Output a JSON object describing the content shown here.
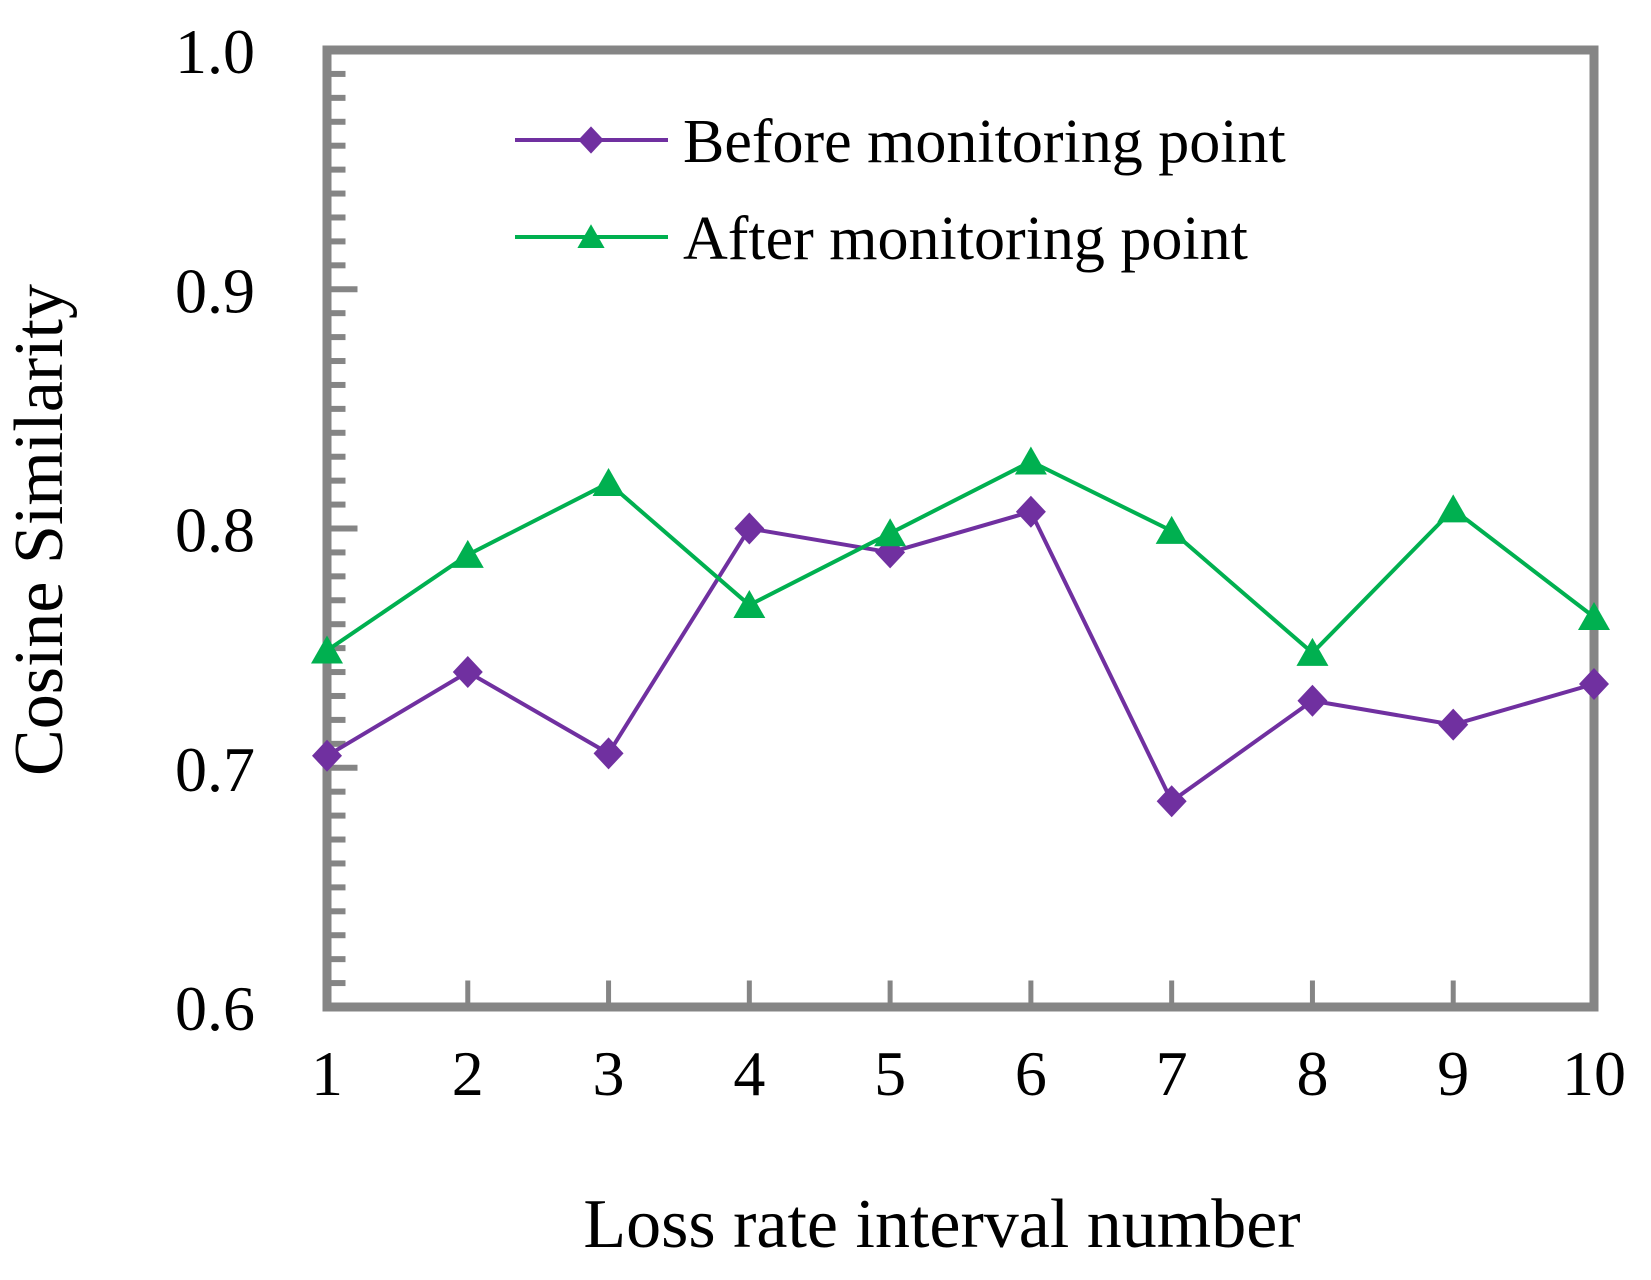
{
  "figure": {
    "background_color": "#ffffff",
    "axis_color": "#858585",
    "text_color": "#000000"
  },
  "chart_data": {
    "type": "line",
    "title": "",
    "xlabel": "Loss rate interval number",
    "ylabel": "Cosine Similarity",
    "categories": [
      1,
      2,
      3,
      4,
      5,
      6,
      7,
      8,
      9,
      10
    ],
    "series": [
      {
        "name": "Before monitoring point",
        "marker": "diamond",
        "color": "#7030A0",
        "values": [
          0.705,
          0.74,
          0.706,
          0.8,
          0.79,
          0.807,
          0.686,
          0.728,
          0.718,
          0.735
        ]
      },
      {
        "name": "After monitoring point",
        "marker": "triangle",
        "color": "#00B050",
        "values": [
          0.749,
          0.789,
          0.819,
          0.768,
          0.798,
          0.828,
          0.799,
          0.748,
          0.808,
          0.763
        ]
      }
    ],
    "xlim": [
      1,
      10
    ],
    "ylim": [
      0.6,
      1.0
    ],
    "y_major_step": 0.1,
    "y_minor_step": 0.01,
    "y_tick_labels": [
      "1.0",
      "0.9",
      "0.8",
      "0.7",
      "0.6"
    ],
    "x_tick_labels": [
      "1",
      "2",
      "3",
      "4",
      "5",
      "6",
      "7",
      "8",
      "9",
      "10"
    ],
    "legend_position": "inside-top",
    "grid": false
  }
}
